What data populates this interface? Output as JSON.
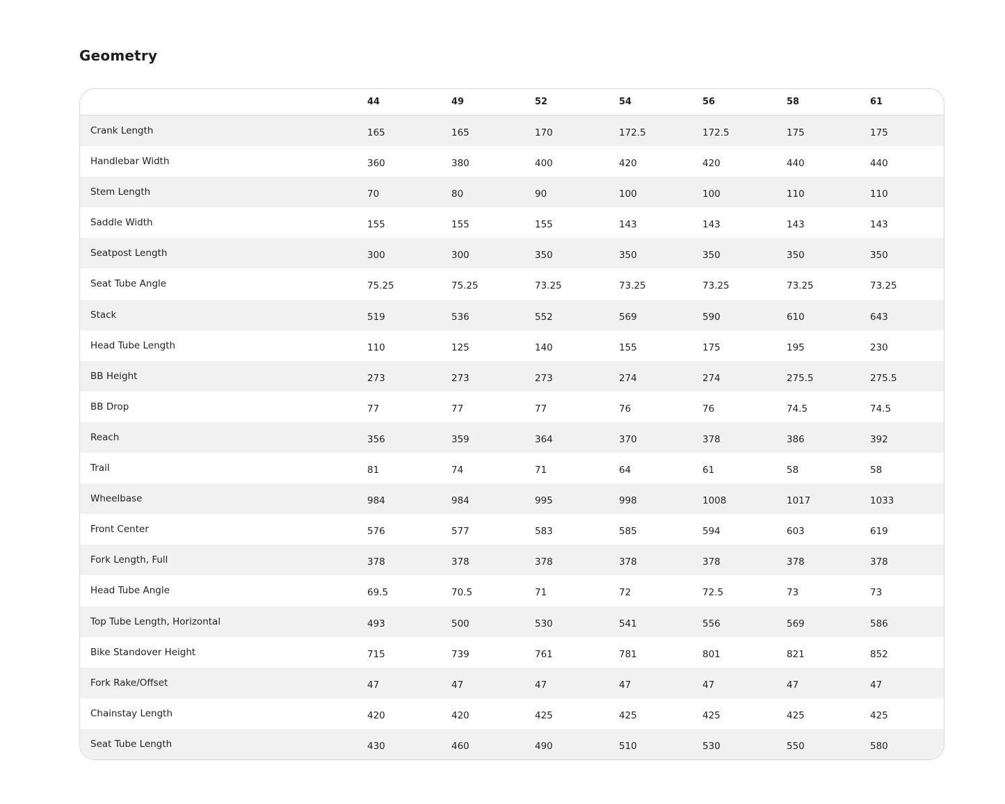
{
  "title": "Geometry",
  "table": {
    "sizes": [
      "44",
      "49",
      "52",
      "54",
      "56",
      "58",
      "61"
    ],
    "rows": [
      {
        "label": "Crank Length",
        "values": [
          "165",
          "165",
          "170",
          "172.5",
          "172.5",
          "175",
          "175"
        ]
      },
      {
        "label": "Handlebar Width",
        "values": [
          "360",
          "380",
          "400",
          "420",
          "420",
          "440",
          "440"
        ]
      },
      {
        "label": "Stem Length",
        "values": [
          "70",
          "80",
          "90",
          "100",
          "100",
          "110",
          "110"
        ]
      },
      {
        "label": "Saddle Width",
        "values": [
          "155",
          "155",
          "155",
          "143",
          "143",
          "143",
          "143"
        ]
      },
      {
        "label": "Seatpost Length",
        "values": [
          "300",
          "300",
          "350",
          "350",
          "350",
          "350",
          "350"
        ]
      },
      {
        "label": "Seat Tube Angle",
        "values": [
          "75.25",
          "75.25",
          "73.25",
          "73.25",
          "73.25",
          "73.25",
          "73.25"
        ]
      },
      {
        "label": "Stack",
        "values": [
          "519",
          "536",
          "552",
          "569",
          "590",
          "610",
          "643"
        ]
      },
      {
        "label": "Head Tube Length",
        "values": [
          "110",
          "125",
          "140",
          "155",
          "175",
          "195",
          "230"
        ]
      },
      {
        "label": "BB Height",
        "values": [
          "273",
          "273",
          "273",
          "274",
          "274",
          "275.5",
          "275.5"
        ]
      },
      {
        "label": "BB Drop",
        "values": [
          "77",
          "77",
          "77",
          "76",
          "76",
          "74.5",
          "74.5"
        ]
      },
      {
        "label": "Reach",
        "values": [
          "356",
          "359",
          "364",
          "370",
          "378",
          "386",
          "392"
        ]
      },
      {
        "label": "Trail",
        "values": [
          "81",
          "74",
          "71",
          "64",
          "61",
          "58",
          "58"
        ]
      },
      {
        "label": "Wheelbase",
        "values": [
          "984",
          "984",
          "995",
          "998",
          "1008",
          "1017",
          "1033"
        ]
      },
      {
        "label": "Front Center",
        "values": [
          "576",
          "577",
          "583",
          "585",
          "594",
          "603",
          "619"
        ]
      },
      {
        "label": "Fork Length, Full",
        "values": [
          "378",
          "378",
          "378",
          "378",
          "378",
          "378",
          "378"
        ]
      },
      {
        "label": "Head Tube Angle",
        "values": [
          "69.5",
          "70.5",
          "71",
          "72",
          "72.5",
          "73",
          "73"
        ]
      },
      {
        "label": "Top Tube Length, Horizontal",
        "values": [
          "493",
          "500",
          "530",
          "541",
          "556",
          "569",
          "586"
        ]
      },
      {
        "label": "Bike Standover Height",
        "values": [
          "715",
          "739",
          "761",
          "781",
          "801",
          "821",
          "852"
        ]
      },
      {
        "label": "Fork Rake/Offset",
        "values": [
          "47",
          "47",
          "47",
          "47",
          "47",
          "47",
          "47"
        ]
      },
      {
        "label": "Chainstay Length",
        "values": [
          "420",
          "420",
          "425",
          "425",
          "425",
          "425",
          "425"
        ]
      },
      {
        "label": "Seat Tube Length",
        "values": [
          "430",
          "460",
          "490",
          "510",
          "530",
          "550",
          "580"
        ]
      }
    ]
  }
}
